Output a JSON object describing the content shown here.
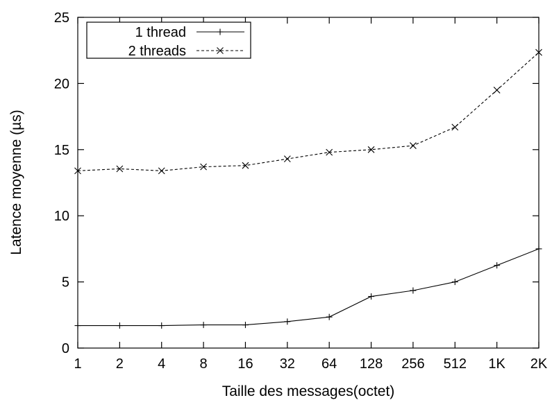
{
  "chart_data": {
    "type": "line",
    "title": "",
    "xlabel": "Taille des messages(octet)",
    "ylabel": "Latence moyenne (µs)",
    "categories": [
      "1",
      "2",
      "4",
      "8",
      "16",
      "32",
      "64",
      "128",
      "256",
      "512",
      "1K",
      "2K"
    ],
    "yticks": [
      "0",
      "5",
      "10",
      "15",
      "20",
      "25"
    ],
    "ylim": [
      0,
      25
    ],
    "grid": false,
    "legend_position": "top-left",
    "series": [
      {
        "name": "1 thread",
        "marker": "plus",
        "line_style": "solid",
        "values": [
          1.7,
          1.7,
          1.7,
          1.75,
          1.75,
          2.0,
          2.35,
          3.9,
          4.35,
          5.0,
          6.25,
          7.5
        ]
      },
      {
        "name": "2 threads",
        "marker": "cross",
        "line_style": "dashed",
        "values": [
          13.4,
          13.55,
          13.4,
          13.7,
          13.8,
          14.3,
          14.8,
          15.0,
          15.3,
          16.7,
          19.5,
          22.35
        ]
      }
    ]
  }
}
